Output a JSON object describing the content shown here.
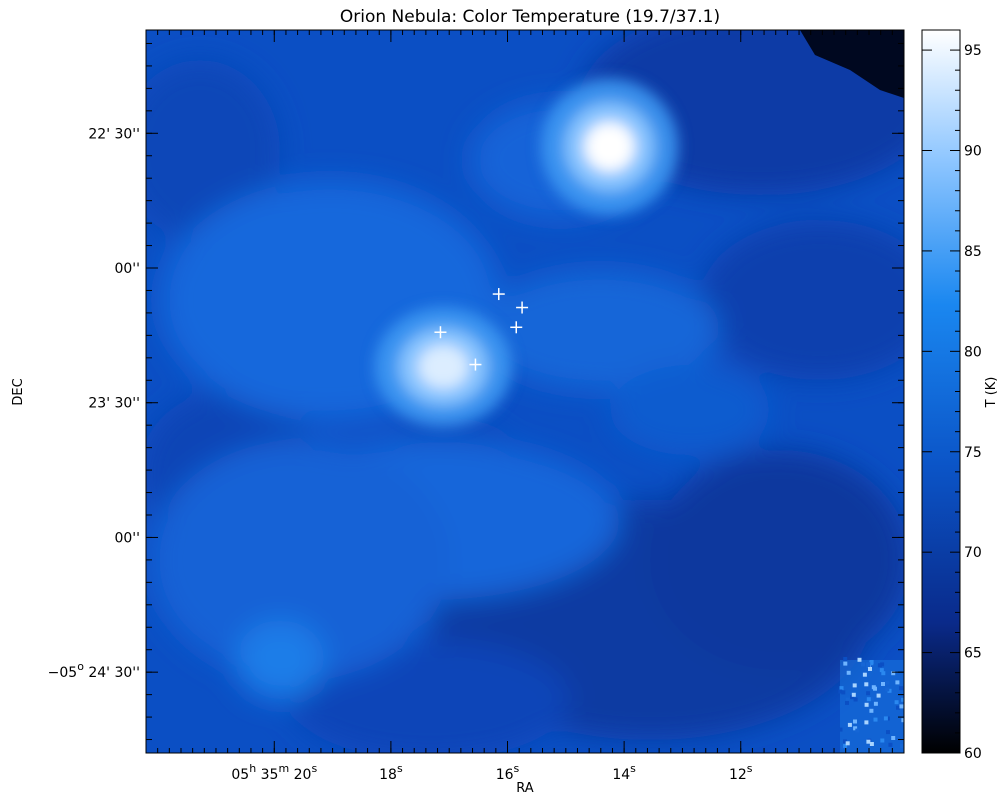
{
  "chart_data": {
    "type": "heatmap",
    "title": "Orion Nebula: Color Temperature (19.7/37.1)",
    "xlabel": "RA",
    "ylabel": "DEC",
    "colorbar": {
      "label": "T (K)",
      "range": [
        60,
        96
      ],
      "ticks": [
        60,
        65,
        70,
        75,
        80,
        85,
        90,
        95
      ],
      "colormap": [
        "#000000",
        "#0a2a8a",
        "#0b55c8",
        "#1a87f0",
        "#8ec6ff",
        "#ffffff"
      ]
    },
    "x_ticks": [
      {
        "ra_s": 20,
        "main": "05",
        "sup": "h",
        "main2": " 35",
        "sup2": "m",
        "main3": " 20",
        "sup3": "s"
      },
      {
        "ra_s": 18,
        "main": "18",
        "sup": "s"
      },
      {
        "ra_s": 16,
        "main": "16",
        "sup": "s"
      },
      {
        "ra_s": 14,
        "main": "14",
        "sup": "s"
      },
      {
        "ra_s": 12,
        "main": "12",
        "sup": "s"
      }
    ],
    "y_ticks": [
      {
        "dec_arcsec": 1350,
        "label": "22' 30''"
      },
      {
        "dec_arcsec": 1380,
        "label": "00''"
      },
      {
        "dec_arcsec": 1410,
        "label": "23' 30''"
      },
      {
        "dec_arcsec": 1440,
        "label": "00''"
      },
      {
        "dec_arcsec": 1470,
        "label": "24' 30''",
        "prefix": "−05",
        "prefix_sup": "o"
      }
    ],
    "xlim_ra_s": [
      22.2,
      9.2
    ],
    "ylim_dec_arcsec": [
      1327,
      1488
    ],
    "hotspots": [
      {
        "name": "",
        "ra_s": 14.25,
        "dec_arcsec": 1353,
        "peak_K": 95,
        "sx": 0.62,
        "sy": 8.0
      },
      {
        "name": "",
        "ra_s": 17.1,
        "dec_arcsec": 1402,
        "peak_K": 88,
        "sx": 0.62,
        "sy": 7.0
      }
    ],
    "markers": [
      {
        "ra_s": 16.15,
        "dec_arcsec": 1385.8
      },
      {
        "ra_s": 15.75,
        "dec_arcsec": 1388.8
      },
      {
        "ra_s": 15.85,
        "dec_arcsec": 1393.2
      },
      {
        "ra_s": 17.15,
        "dec_arcsec": 1394.3
      },
      {
        "ra_s": 16.55,
        "dec_arcsec": 1401.5
      }
    ]
  }
}
